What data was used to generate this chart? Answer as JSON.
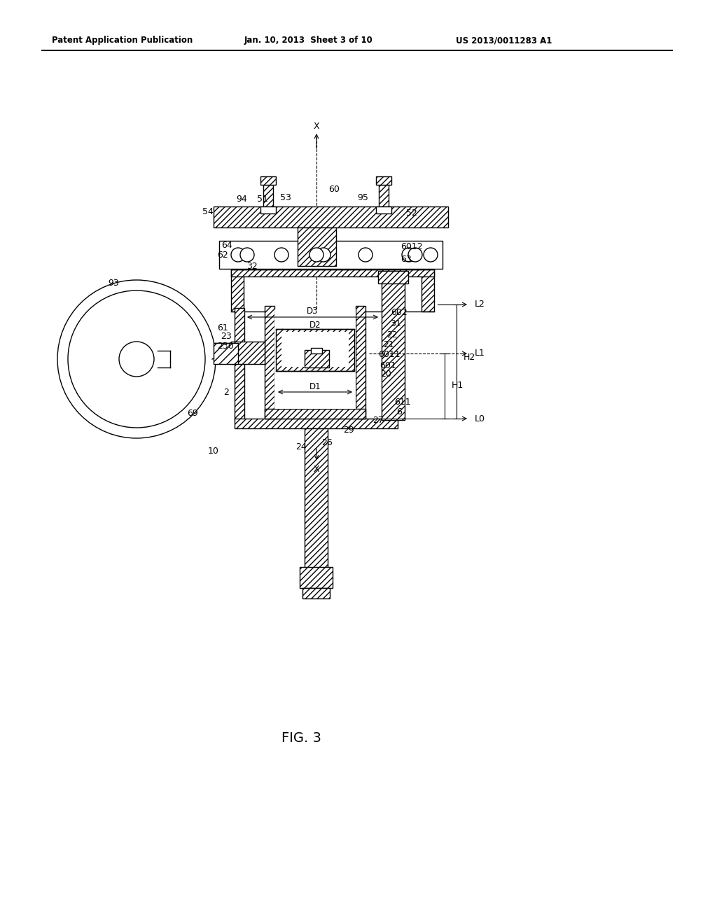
{
  "title_left": "Patent Application Publication",
  "title_center": "Jan. 10, 2013  Sheet 3 of 10",
  "title_right": "US 2013/0011283 A1",
  "fig_label": "FIG. 3",
  "background_color": "#ffffff",
  "line_color": "#000000"
}
